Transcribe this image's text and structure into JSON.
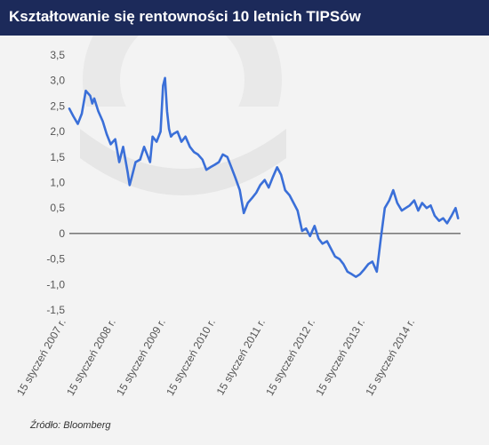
{
  "colors": {
    "header_bg": "#1c2a5a",
    "header_text": "#ffffff",
    "line": "#3a6fd8",
    "axis_text": "#555555",
    "zero_line": "#333333",
    "watermark": "#e4e4e4"
  },
  "icons": {
    "watermark": "large-logo-watermark-icon"
  },
  "source": "Źródło: Bloomberg",
  "chart_data": {
    "type": "line",
    "title": "Kształtowanie się rentowności 10 letnich TIPSów",
    "xlabel": "",
    "ylabel": "",
    "ylim": [
      -1.5,
      3.5
    ],
    "yticks": [
      3.5,
      3.0,
      2.5,
      2.0,
      1.5,
      1.0,
      0.5,
      0,
      -0.5,
      -1.0,
      -1.5
    ],
    "ytick_labels": [
      "3,5",
      "3,0",
      "2,5",
      "2,0",
      "1,5",
      "1,0",
      "0,5",
      "0",
      "-0,5",
      "-1,0",
      "-1,5"
    ],
    "xlim": [
      2007.0,
      2014.85
    ],
    "xticks": [
      2007.04,
      2008.04,
      2009.04,
      2010.04,
      2011.04,
      2012.04,
      2013.04,
      2014.04
    ],
    "xtick_labels": [
      "15 styczeń 2007 r.",
      "15 styczeń 2008 r.",
      "15 styczeń 2009 r.",
      "15 styczeń 2010 r.",
      "15 styczeń 2011 r.",
      "15 styczeń 2012 r.",
      "15 styczeń 2013 r.",
      "15 styczeń 2014 r."
    ],
    "grid": false,
    "legend": "none",
    "series": [
      {
        "x": [
          2007.0,
          2007.08,
          2007.17,
          2007.25,
          2007.33,
          2007.42,
          2007.46,
          2007.5,
          2007.58,
          2007.67,
          2007.75,
          2007.83,
          2007.92,
          2008.0,
          2008.08,
          2008.17,
          2008.21,
          2008.25,
          2008.33,
          2008.42,
          2008.5,
          2008.58,
          2008.62,
          2008.67,
          2008.75,
          2008.83,
          2008.88,
          2008.92,
          2008.96,
          2009.0,
          2009.04,
          2009.08,
          2009.17,
          2009.25,
          2009.33,
          2009.42,
          2009.5,
          2009.58,
          2009.67,
          2009.75,
          2009.83,
          2009.92,
          2010.0,
          2010.08,
          2010.17,
          2010.25,
          2010.33,
          2010.42,
          2010.5,
          2010.58,
          2010.67,
          2010.75,
          2010.83,
          2010.92,
          2011.0,
          2011.08,
          2011.17,
          2011.25,
          2011.33,
          2011.42,
          2011.5,
          2011.58,
          2011.67,
          2011.75,
          2011.83,
          2011.92,
          2012.0,
          2012.08,
          2012.17,
          2012.25,
          2012.33,
          2012.42,
          2012.5,
          2012.58,
          2012.67,
          2012.75,
          2012.83,
          2012.92,
          2013.0,
          2013.08,
          2013.17,
          2013.25,
          2013.33,
          2013.42,
          2013.5,
          2013.58,
          2013.67,
          2013.75,
          2013.83,
          2013.92,
          2014.0,
          2014.08,
          2014.17,
          2014.25,
          2014.33,
          2014.42,
          2014.5,
          2014.58,
          2014.67,
          2014.75,
          2014.8
        ],
        "values": [
          2.45,
          2.3,
          2.15,
          2.35,
          2.8,
          2.7,
          2.55,
          2.65,
          2.4,
          2.2,
          1.95,
          1.75,
          1.85,
          1.4,
          1.7,
          1.2,
          0.95,
          1.1,
          1.4,
          1.45,
          1.7,
          1.5,
          1.4,
          1.9,
          1.8,
          2.0,
          2.9,
          3.05,
          2.4,
          2.05,
          1.9,
          1.95,
          2.0,
          1.8,
          1.9,
          1.7,
          1.6,
          1.55,
          1.45,
          1.25,
          1.3,
          1.35,
          1.4,
          1.55,
          1.5,
          1.3,
          1.1,
          0.85,
          0.4,
          0.6,
          0.7,
          0.8,
          0.95,
          1.05,
          0.9,
          1.1,
          1.3,
          1.15,
          0.85,
          0.75,
          0.6,
          0.45,
          0.05,
          0.1,
          -0.05,
          0.15,
          -0.1,
          -0.2,
          -0.15,
          -0.3,
          -0.45,
          -0.5,
          -0.6,
          -0.75,
          -0.8,
          -0.85,
          -0.8,
          -0.7,
          -0.6,
          -0.55,
          -0.75,
          -0.1,
          0.5,
          0.65,
          0.85,
          0.6,
          0.45,
          0.5,
          0.55,
          0.65,
          0.45,
          0.6,
          0.5,
          0.55,
          0.35,
          0.25,
          0.3,
          0.2,
          0.35,
          0.5,
          0.3
        ]
      }
    ]
  }
}
